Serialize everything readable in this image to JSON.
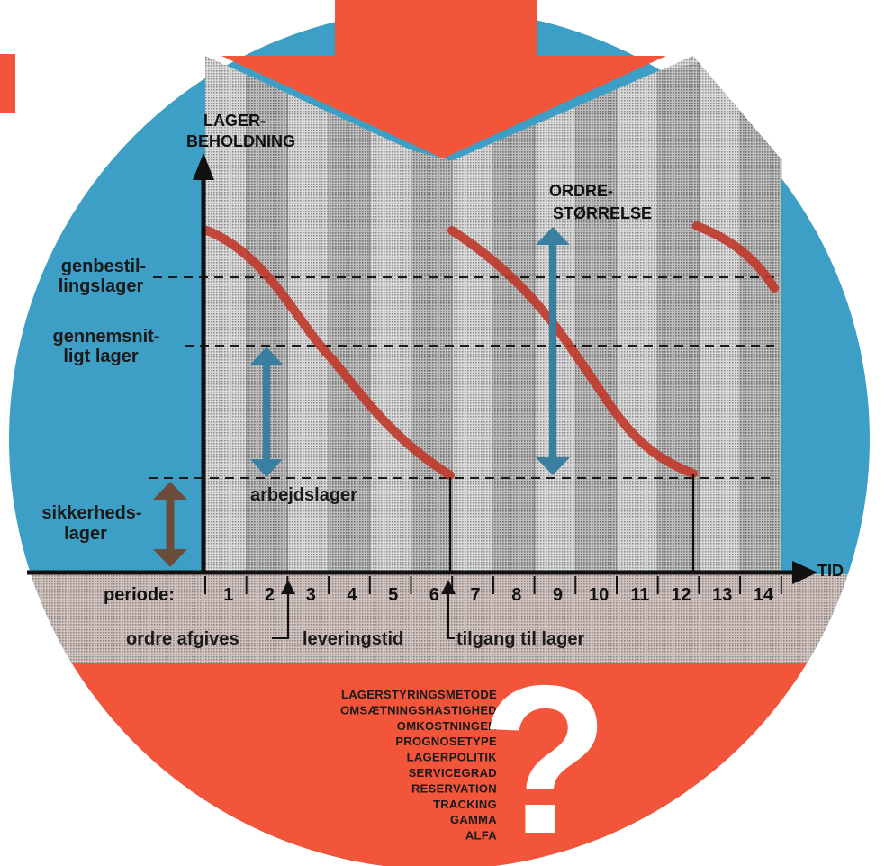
{
  "diagram": {
    "y_axis_label": [
      "LAGER-",
      "BEHOLDNING"
    ],
    "x_axis_label": "TID",
    "order_size_label": [
      "ORDRE-",
      "STØRRELSE"
    ],
    "levels": {
      "reorder": [
        "genbestil-",
        "lingslager"
      ],
      "average": [
        "gennemsnit-",
        "ligt lager"
      ],
      "safety": [
        "sikkerheds-",
        "lager"
      ],
      "working": "arbejdslager"
    },
    "period_label": "periode:",
    "periods": [
      "1",
      "2",
      "3",
      "4",
      "5",
      "6",
      "7",
      "8",
      "9",
      "10",
      "11",
      "12",
      "13",
      "14"
    ],
    "timeline": {
      "order_placed": "ordre afgives",
      "lead_time": "leveringstid",
      "receipt": "tilgang til lager"
    },
    "topics": [
      "LAGERSTYRINGSMETODE",
      "OMSÆTNINGSHASTIGHED",
      "OMKOSTNINGER",
      "PROGNOSETYPE",
      "LAGERPOLITIK",
      "SERVICEGRAD",
      "RESERVATION",
      "TRACKING",
      "GAMMA",
      "ALFA"
    ],
    "question_mark": "?"
  },
  "colors": {
    "blue": "#3d9fc6",
    "orange": "#f2553a",
    "curve": "#c0392b",
    "teal_arrow": "#3b7fa0",
    "brown_arrow": "#6b4b3a"
  }
}
